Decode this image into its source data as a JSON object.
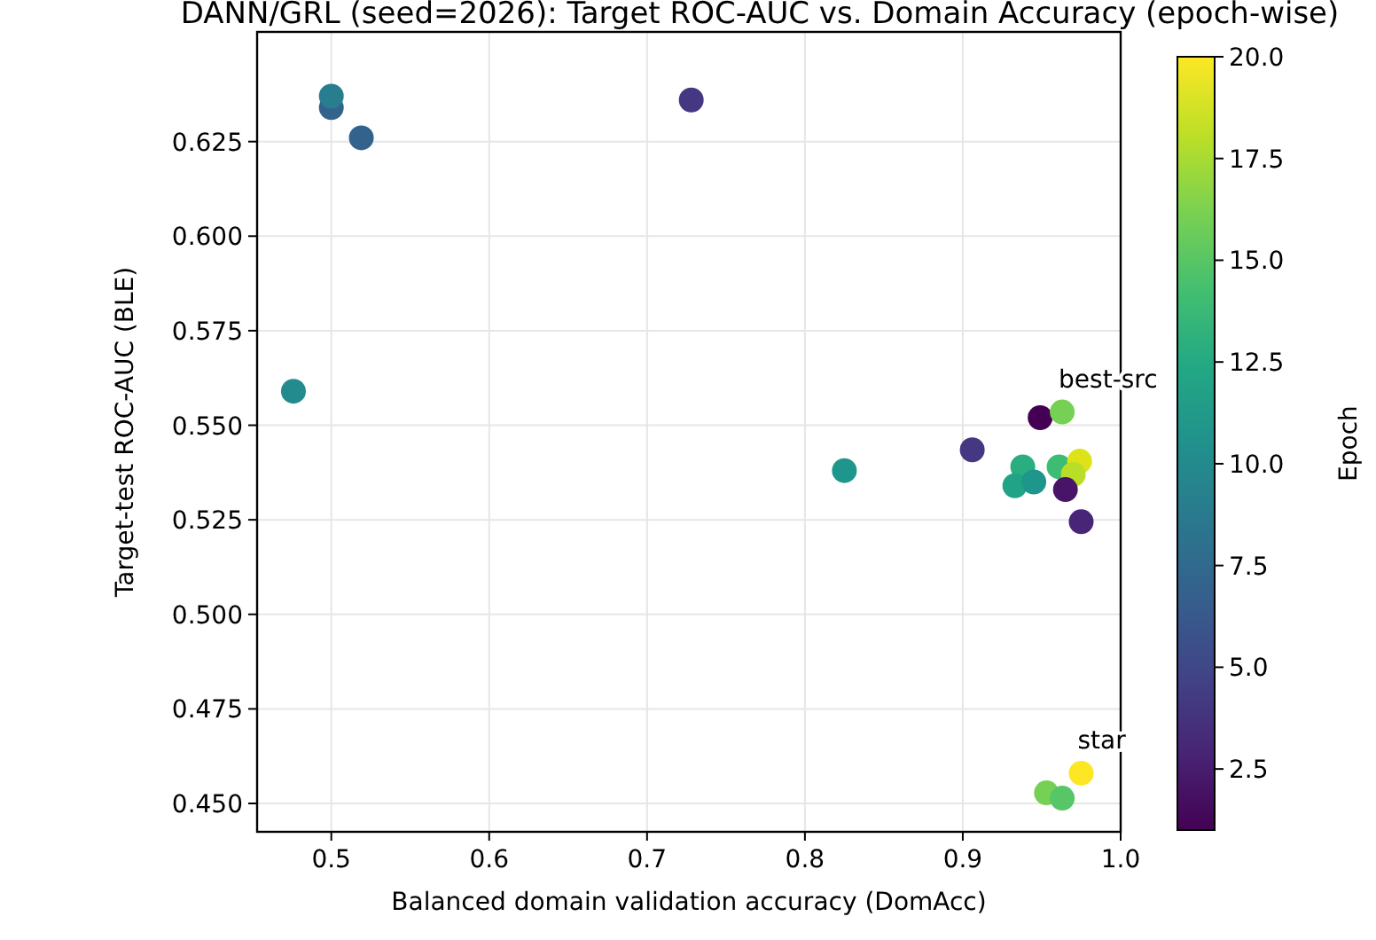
{
  "chart_data": {
    "type": "scatter",
    "title": "DANN/GRL (seed=2026): Target ROC-AUC vs. Domain Accuracy (epoch-wise)",
    "xlabel": "Balanced domain validation accuracy (DomAcc)",
    "ylabel": "Target-test ROC-AUC (BLE)",
    "clabel": "Epoch",
    "x": [
      0.5,
      0.5,
      0.519,
      0.728,
      0.476,
      0.825,
      0.906,
      0.949,
      0.963,
      0.938,
      0.933,
      0.945,
      0.961,
      0.974,
      0.97,
      0.965,
      0.975,
      0.975,
      0.953,
      0.963
    ],
    "values": [
      0.634,
      0.637,
      0.626,
      0.636,
      0.559,
      0.538,
      0.5435,
      0.552,
      0.5535,
      0.539,
      0.534,
      0.535,
      0.539,
      0.5405,
      0.537,
      0.533,
      0.5245,
      0.458,
      0.4528,
      0.4514
    ],
    "cvalues": [
      7,
      9,
      7,
      4,
      10,
      11,
      4,
      1,
      16,
      13,
      12,
      11,
      14,
      19,
      18,
      2,
      3,
      20,
      16,
      15
    ],
    "clim": [
      1,
      20
    ],
    "cticks": [
      {
        "value": 2.5,
        "label": "2.5"
      },
      {
        "value": 5,
        "label": "5.0"
      },
      {
        "value": 7.5,
        "label": "7.5"
      },
      {
        "value": 10,
        "label": "10.0"
      },
      {
        "value": 12.5,
        "label": "12.5"
      },
      {
        "value": 15,
        "label": "15.0"
      },
      {
        "value": 17.5,
        "label": "17.5"
      },
      {
        "value": 20,
        "label": "20.0"
      }
    ],
    "xlim": [
      0.453,
      1.0
    ],
    "xticks": [
      0.5,
      0.6,
      0.7,
      0.8,
      0.9,
      {
        "value": 1.0,
        "label": "1.0"
      }
    ],
    "ylim": [
      0.4425,
      0.654
    ],
    "yticks": [
      {
        "value": 0.45,
        "label": "0.450"
      },
      {
        "value": 0.475,
        "label": "0.475"
      },
      {
        "value": 0.5,
        "label": "0.500"
      },
      {
        "value": 0.525,
        "label": "0.525"
      },
      {
        "value": 0.55,
        "label": "0.550"
      },
      {
        "value": 0.575,
        "label": "0.575"
      },
      {
        "value": 0.6,
        "label": "0.600"
      },
      {
        "value": 0.625,
        "label": "0.625"
      }
    ],
    "grid": true,
    "marker": "circle",
    "annotations": [
      {
        "text": "best-src",
        "x": 0.963,
        "y": 0.5535
      },
      {
        "text": "star",
        "x": 0.975,
        "y": 0.458
      }
    ]
  }
}
